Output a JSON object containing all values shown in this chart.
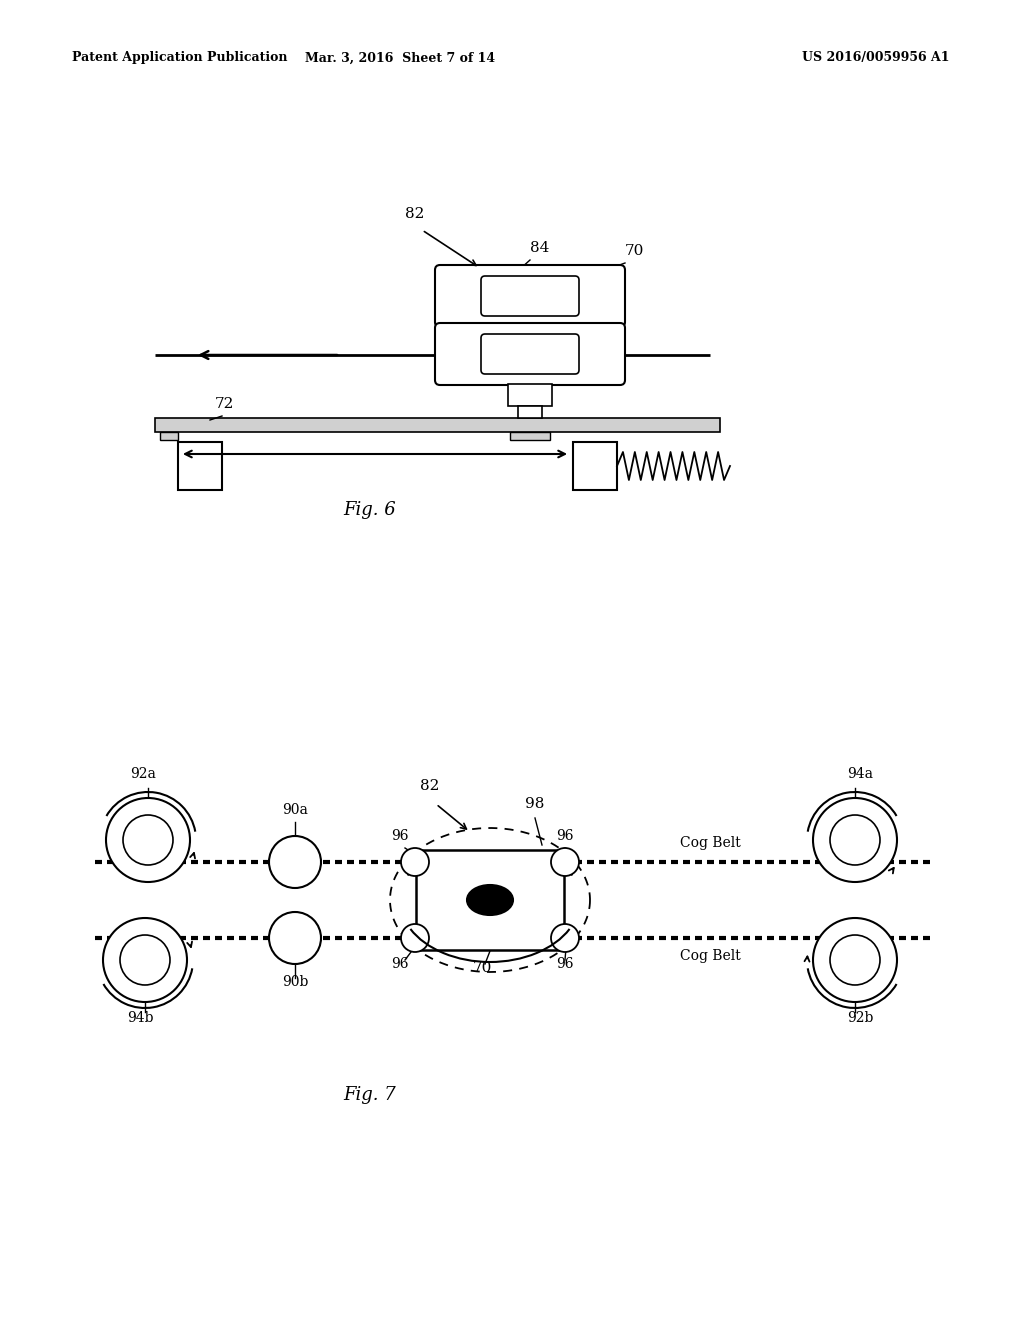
{
  "bg_color": "#ffffff",
  "header_left": "Patent Application Publication",
  "header_mid": "Mar. 3, 2016  Sheet 7 of 14",
  "header_right": "US 2016/0059956 A1",
  "fig6_caption": "Fig. 6",
  "fig7_caption": "Fig. 7",
  "line_color": "#000000"
}
